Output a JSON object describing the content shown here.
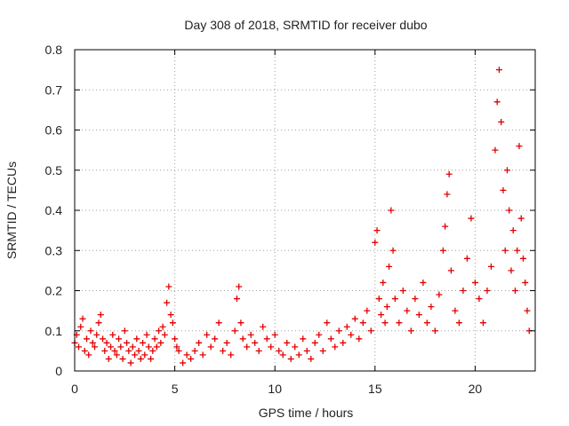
{
  "chart_data": {
    "type": "scatter",
    "title": "Day 308 of 2018, SRMTID for receiver dubo",
    "xlabel": "GPS time / hours",
    "ylabel": "SRMTID / TECUs",
    "xlim": [
      0,
      23
    ],
    "ylim": [
      0,
      0.8
    ],
    "xticks": [
      0,
      5,
      10,
      15,
      20
    ],
    "xtick_labels": [
      "0",
      "5",
      "10",
      "15",
      "20"
    ],
    "yticks": [
      0,
      0.1,
      0.2,
      0.3,
      0.4,
      0.5,
      0.6,
      0.7,
      0.8
    ],
    "ytick_labels": [
      "0",
      "0.1",
      "0.2",
      "0.3",
      "0.4",
      "0.5",
      "0.6",
      "0.7",
      "0.8"
    ],
    "grid": true,
    "marker": "+",
    "series_color": "#e00000",
    "series": [
      {
        "name": "SRMTID",
        "points": [
          [
            0.0,
            0.07
          ],
          [
            0.1,
            0.09
          ],
          [
            0.2,
            0.06
          ],
          [
            0.3,
            0.11
          ],
          [
            0.4,
            0.13
          ],
          [
            0.5,
            0.05
          ],
          [
            0.6,
            0.08
          ],
          [
            0.7,
            0.04
          ],
          [
            0.8,
            0.1
          ],
          [
            0.9,
            0.07
          ],
          [
            1.0,
            0.06
          ],
          [
            1.1,
            0.09
          ],
          [
            1.2,
            0.12
          ],
          [
            1.3,
            0.14
          ],
          [
            1.4,
            0.08
          ],
          [
            1.5,
            0.05
          ],
          [
            1.6,
            0.07
          ],
          [
            1.7,
            0.03
          ],
          [
            1.8,
            0.06
          ],
          [
            1.9,
            0.09
          ],
          [
            2.0,
            0.05
          ],
          [
            2.1,
            0.04
          ],
          [
            2.2,
            0.08
          ],
          [
            2.3,
            0.06
          ],
          [
            2.4,
            0.03
          ],
          [
            2.5,
            0.1
          ],
          [
            2.6,
            0.07
          ],
          [
            2.7,
            0.05
          ],
          [
            2.8,
            0.02
          ],
          [
            2.9,
            0.06
          ],
          [
            3.0,
            0.04
          ],
          [
            3.1,
            0.08
          ],
          [
            3.2,
            0.05
          ],
          [
            3.3,
            0.03
          ],
          [
            3.4,
            0.07
          ],
          [
            3.5,
            0.04
          ],
          [
            3.6,
            0.09
          ],
          [
            3.7,
            0.06
          ],
          [
            3.8,
            0.03
          ],
          [
            3.9,
            0.05
          ],
          [
            4.0,
            0.08
          ],
          [
            4.1,
            0.06
          ],
          [
            4.2,
            0.1
          ],
          [
            4.3,
            0.07
          ],
          [
            4.4,
            0.11
          ],
          [
            4.5,
            0.09
          ],
          [
            4.6,
            0.17
          ],
          [
            4.7,
            0.21
          ],
          [
            4.8,
            0.14
          ],
          [
            4.9,
            0.12
          ],
          [
            5.0,
            0.08
          ],
          [
            5.1,
            0.06
          ],
          [
            5.2,
            0.05
          ],
          [
            5.4,
            0.02
          ],
          [
            5.6,
            0.04
          ],
          [
            5.8,
            0.03
          ],
          [
            6.0,
            0.05
          ],
          [
            6.2,
            0.07
          ],
          [
            6.4,
            0.04
          ],
          [
            6.6,
            0.09
          ],
          [
            6.8,
            0.06
          ],
          [
            7.0,
            0.08
          ],
          [
            7.2,
            0.12
          ],
          [
            7.4,
            0.05
          ],
          [
            7.6,
            0.07
          ],
          [
            7.8,
            0.04
          ],
          [
            8.0,
            0.1
          ],
          [
            8.1,
            0.18
          ],
          [
            8.2,
            0.21
          ],
          [
            8.3,
            0.12
          ],
          [
            8.4,
            0.08
          ],
          [
            8.6,
            0.06
          ],
          [
            8.8,
            0.09
          ],
          [
            9.0,
            0.07
          ],
          [
            9.2,
            0.05
          ],
          [
            9.4,
            0.11
          ],
          [
            9.6,
            0.08
          ],
          [
            9.8,
            0.06
          ],
          [
            10.0,
            0.09
          ],
          [
            10.2,
            0.05
          ],
          [
            10.4,
            0.04
          ],
          [
            10.6,
            0.07
          ],
          [
            10.8,
            0.03
          ],
          [
            11.0,
            0.06
          ],
          [
            11.2,
            0.04
          ],
          [
            11.4,
            0.08
          ],
          [
            11.6,
            0.05
          ],
          [
            11.8,
            0.03
          ],
          [
            12.0,
            0.07
          ],
          [
            12.2,
            0.09
          ],
          [
            12.4,
            0.05
          ],
          [
            12.6,
            0.12
          ],
          [
            12.8,
            0.08
          ],
          [
            13.0,
            0.06
          ],
          [
            13.2,
            0.1
          ],
          [
            13.4,
            0.07
          ],
          [
            13.6,
            0.11
          ],
          [
            13.8,
            0.09
          ],
          [
            14.0,
            0.13
          ],
          [
            14.2,
            0.08
          ],
          [
            14.4,
            0.12
          ],
          [
            14.6,
            0.15
          ],
          [
            14.8,
            0.1
          ],
          [
            15.0,
            0.32
          ],
          [
            15.1,
            0.35
          ],
          [
            15.2,
            0.18
          ],
          [
            15.3,
            0.14
          ],
          [
            15.4,
            0.22
          ],
          [
            15.5,
            0.12
          ],
          [
            15.6,
            0.16
          ],
          [
            15.7,
            0.26
          ],
          [
            15.8,
            0.4
          ],
          [
            15.9,
            0.3
          ],
          [
            16.0,
            0.18
          ],
          [
            16.2,
            0.12
          ],
          [
            16.4,
            0.2
          ],
          [
            16.6,
            0.15
          ],
          [
            16.8,
            0.1
          ],
          [
            17.0,
            0.18
          ],
          [
            17.2,
            0.14
          ],
          [
            17.4,
            0.22
          ],
          [
            17.6,
            0.12
          ],
          [
            17.8,
            0.16
          ],
          [
            18.0,
            0.1
          ],
          [
            18.2,
            0.19
          ],
          [
            18.4,
            0.3
          ],
          [
            18.5,
            0.36
          ],
          [
            18.6,
            0.44
          ],
          [
            18.7,
            0.49
          ],
          [
            18.8,
            0.25
          ],
          [
            19.0,
            0.15
          ],
          [
            19.2,
            0.12
          ],
          [
            19.4,
            0.2
          ],
          [
            19.6,
            0.28
          ],
          [
            19.8,
            0.38
          ],
          [
            20.0,
            0.22
          ],
          [
            20.2,
            0.18
          ],
          [
            20.4,
            0.12
          ],
          [
            20.6,
            0.2
          ],
          [
            20.8,
            0.26
          ],
          [
            21.0,
            0.55
          ],
          [
            21.1,
            0.67
          ],
          [
            21.2,
            0.75
          ],
          [
            21.3,
            0.62
          ],
          [
            21.4,
            0.45
          ],
          [
            21.5,
            0.3
          ],
          [
            21.6,
            0.5
          ],
          [
            21.7,
            0.4
          ],
          [
            21.8,
            0.25
          ],
          [
            21.9,
            0.35
          ],
          [
            22.0,
            0.2
          ],
          [
            22.1,
            0.3
          ],
          [
            22.2,
            0.56
          ],
          [
            22.3,
            0.38
          ],
          [
            22.4,
            0.28
          ],
          [
            22.5,
            0.22
          ],
          [
            22.6,
            0.15
          ],
          [
            22.7,
            0.1
          ]
        ]
      }
    ]
  }
}
